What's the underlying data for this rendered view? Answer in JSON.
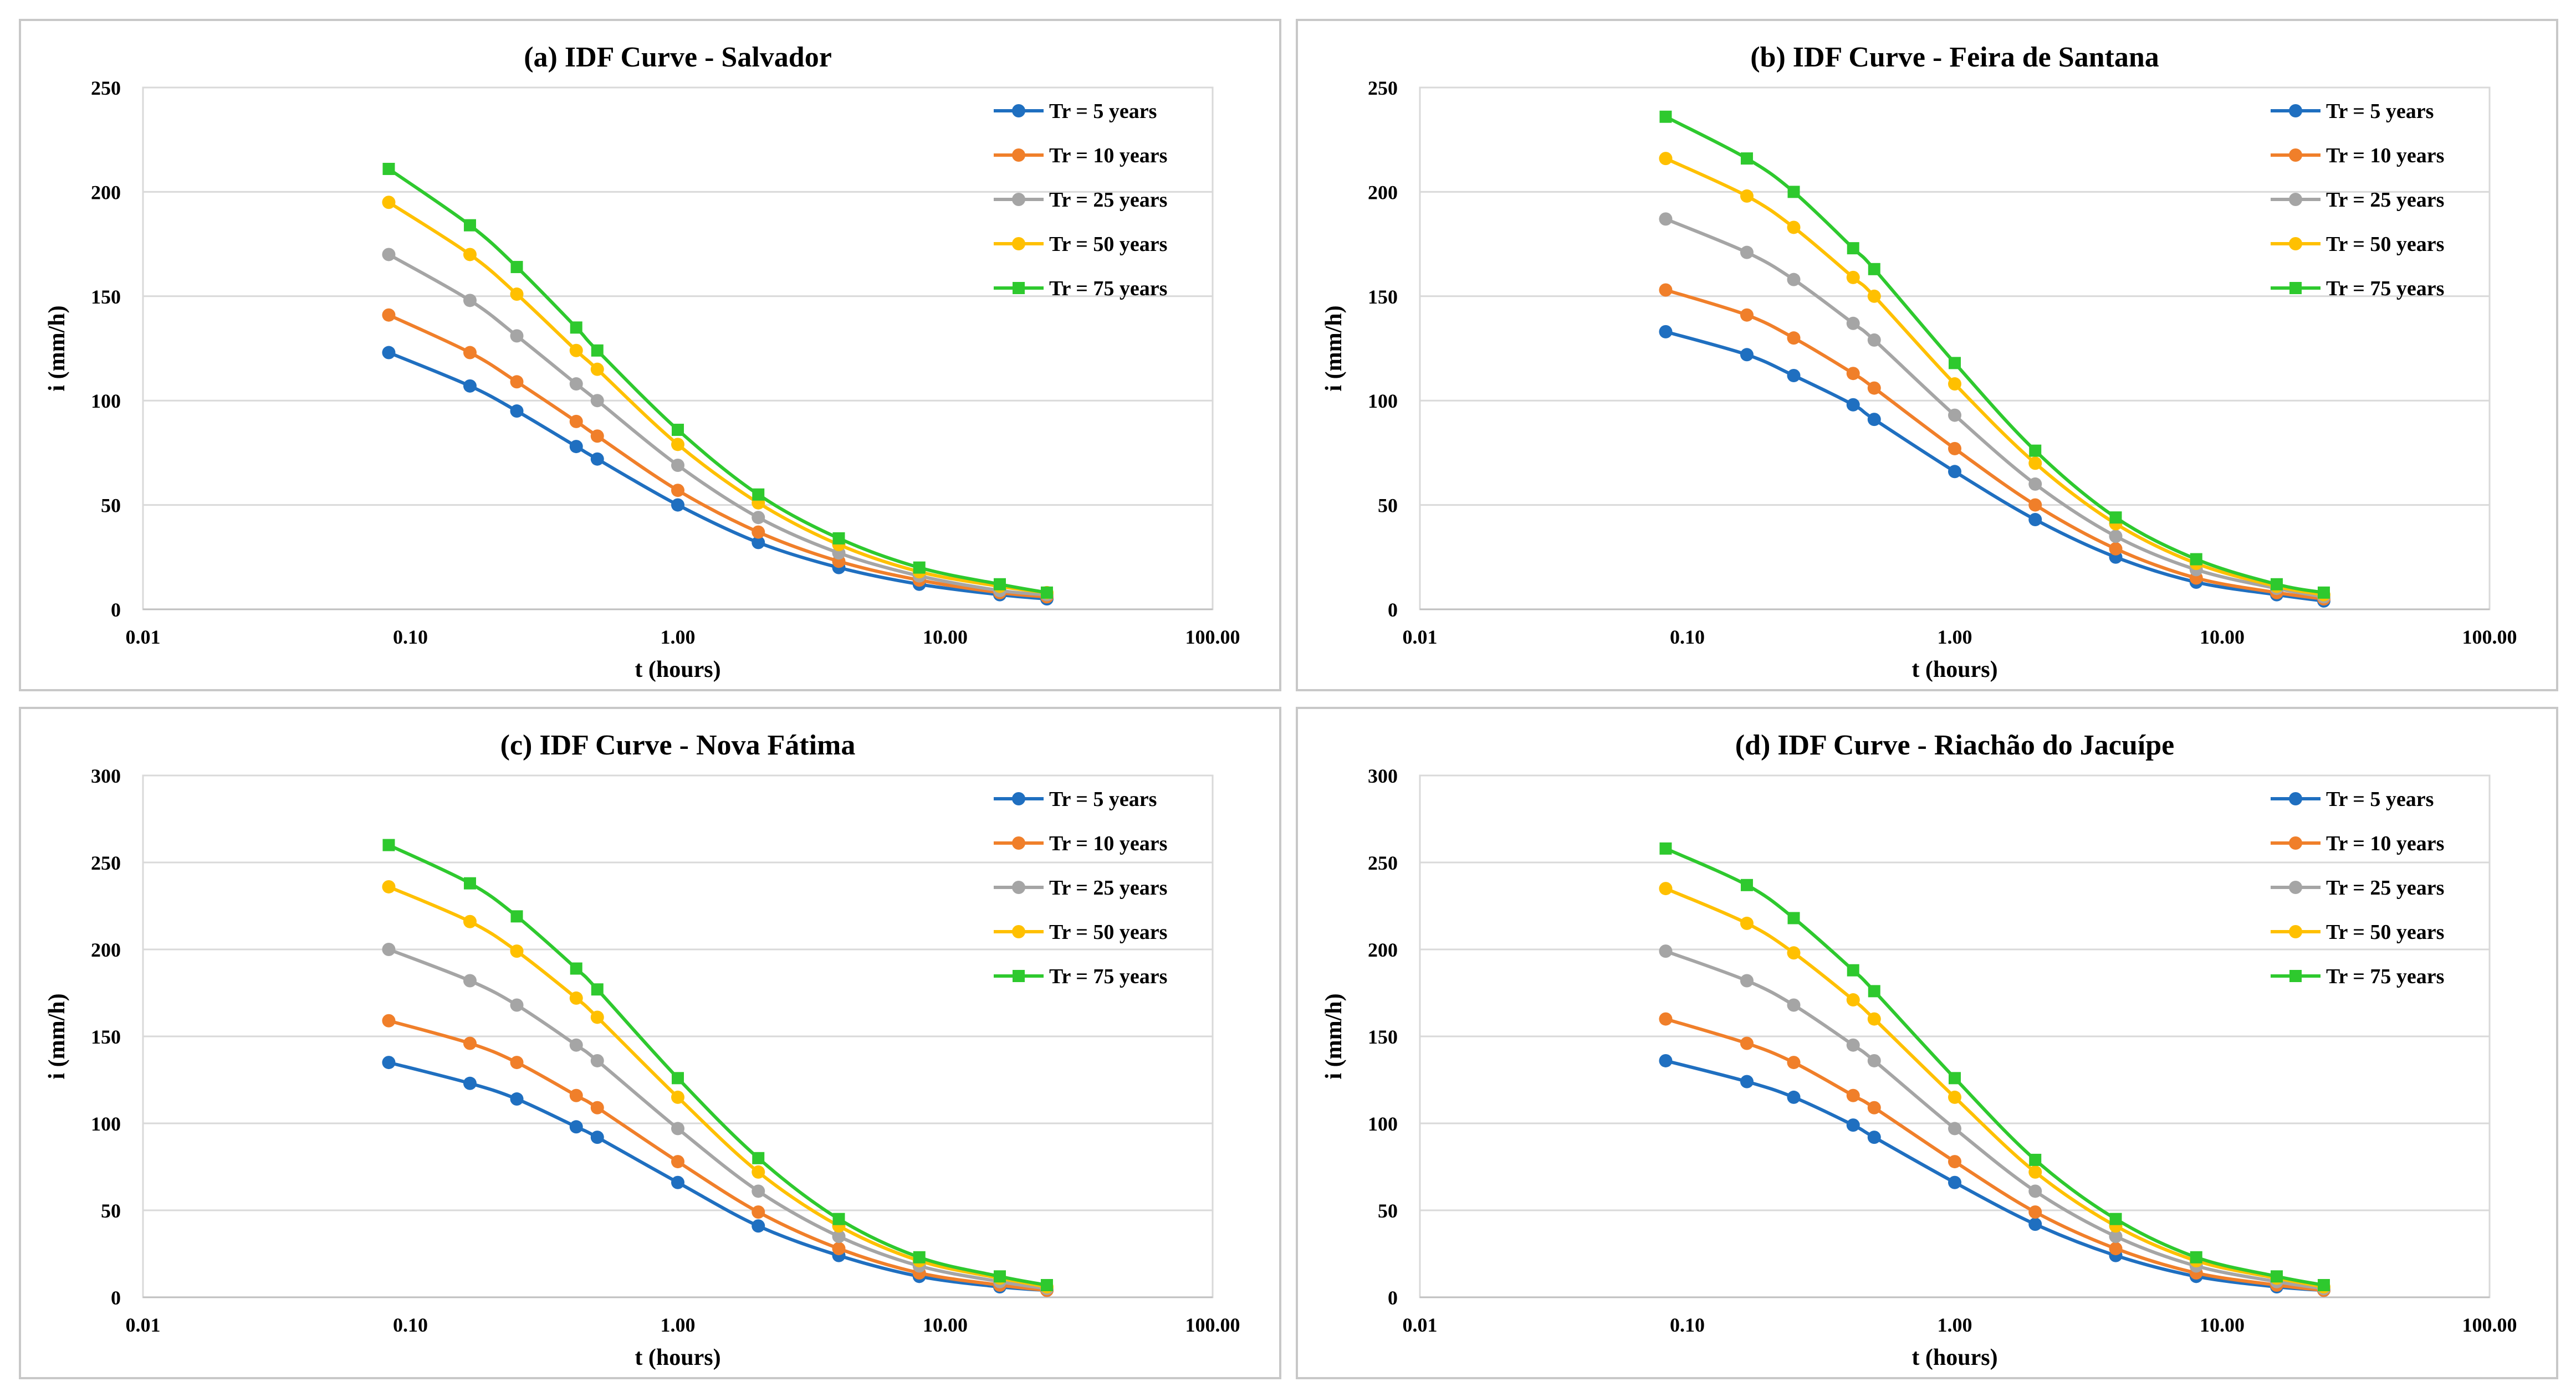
{
  "chart_data": [
    {
      "type": "line",
      "title": "(a) IDF Curve - Salvador",
      "xlabel": "t (hours)",
      "ylabel": "i (mm/h)",
      "x_scale": "log",
      "xlim": [
        0.01,
        100
      ],
      "ylim": [
        0,
        250
      ],
      "x_ticks": [
        "0.01",
        "0.10",
        "1.00",
        "10.00",
        "100.00"
      ],
      "y_ticks": [
        "0",
        "50",
        "100",
        "150",
        "200",
        "250"
      ],
      "grid": "horizontal",
      "legend": "top-right",
      "x": [
        0.083,
        0.167,
        0.25,
        0.417,
        0.5,
        1,
        2,
        4,
        8,
        16,
        24
      ],
      "series": [
        {
          "name": "Tr = 5 years",
          "color": "#1f6fc0",
          "marker": "circle",
          "values": [
            123,
            107,
            95,
            78,
            72,
            50,
            32,
            20,
            12,
            7,
            5
          ]
        },
        {
          "name": "Tr = 10 years",
          "color": "#f07f2a",
          "marker": "circle",
          "values": [
            141,
            123,
            109,
            90,
            83,
            57,
            37,
            23,
            14,
            8,
            6
          ]
        },
        {
          "name": "Tr = 25 years",
          "color": "#a5a5a5",
          "marker": "circle",
          "values": [
            170,
            148,
            131,
            108,
            100,
            69,
            44,
            27,
            16,
            9,
            7
          ]
        },
        {
          "name": "Tr = 50 years",
          "color": "#ffc000",
          "marker": "circle",
          "values": [
            195,
            170,
            151,
            124,
            115,
            79,
            51,
            31,
            18,
            11,
            8
          ]
        },
        {
          "name": "Tr = 75 years",
          "color": "#2ec92e",
          "marker": "square",
          "values": [
            211,
            184,
            164,
            135,
            124,
            86,
            55,
            34,
            20,
            12,
            8
          ]
        }
      ]
    },
    {
      "type": "line",
      "title": "(b) IDF Curve - Feira de Santana",
      "xlabel": "t (hours)",
      "ylabel": "i (mm/h)",
      "x_scale": "log",
      "xlim": [
        0.01,
        100
      ],
      "ylim": [
        0,
        250
      ],
      "x_ticks": [
        "0.01",
        "0.10",
        "1.00",
        "10.00",
        "100.00"
      ],
      "y_ticks": [
        "0",
        "50",
        "100",
        "150",
        "200",
        "250"
      ],
      "grid": "horizontal",
      "legend": "top-right",
      "x": [
        0.083,
        0.167,
        0.25,
        0.417,
        0.5,
        1,
        2,
        4,
        8,
        16,
        24
      ],
      "series": [
        {
          "name": "Tr = 5 years",
          "color": "#1f6fc0",
          "marker": "circle",
          "values": [
            133,
            122,
            112,
            98,
            91,
            66,
            43,
            25,
            13,
            7,
            4
          ]
        },
        {
          "name": "Tr = 10 years",
          "color": "#f07f2a",
          "marker": "circle",
          "values": [
            153,
            141,
            130,
            113,
            106,
            77,
            50,
            29,
            15,
            8,
            5
          ]
        },
        {
          "name": "Tr = 25 years",
          "color": "#a5a5a5",
          "marker": "circle",
          "values": [
            187,
            171,
            158,
            137,
            129,
            93,
            60,
            35,
            19,
            10,
            6
          ]
        },
        {
          "name": "Tr = 50 years",
          "color": "#ffc000",
          "marker": "circle",
          "values": [
            216,
            198,
            183,
            159,
            150,
            108,
            70,
            41,
            22,
            11,
            7
          ]
        },
        {
          "name": "Tr = 75 years",
          "color": "#2ec92e",
          "marker": "square",
          "values": [
            236,
            216,
            200,
            173,
            163,
            118,
            76,
            44,
            24,
            12,
            8
          ]
        }
      ]
    },
    {
      "type": "line",
      "title": "(c) IDF Curve - Nova Fátima",
      "xlabel": "t (hours)",
      "ylabel": "i (mm/h)",
      "x_scale": "log",
      "xlim": [
        0.01,
        100
      ],
      "ylim": [
        0,
        300
      ],
      "x_ticks": [
        "0.01",
        "0.10",
        "1.00",
        "10.00",
        "100.00"
      ],
      "y_ticks": [
        "0",
        "50",
        "100",
        "150",
        "200",
        "250",
        "300"
      ],
      "grid": "horizontal",
      "legend": "top-right",
      "x": [
        0.083,
        0.167,
        0.25,
        0.417,
        0.5,
        1,
        2,
        4,
        8,
        16,
        24
      ],
      "series": [
        {
          "name": "Tr = 5 years",
          "color": "#1f6fc0",
          "marker": "circle",
          "values": [
            135,
            123,
            114,
            98,
            92,
            66,
            41,
            24,
            12,
            6,
            4
          ]
        },
        {
          "name": "Tr = 10 years",
          "color": "#f07f2a",
          "marker": "circle",
          "values": [
            159,
            146,
            135,
            116,
            109,
            78,
            49,
            28,
            14,
            7,
            4
          ]
        },
        {
          "name": "Tr = 25 years",
          "color": "#a5a5a5",
          "marker": "circle",
          "values": [
            200,
            182,
            168,
            145,
            136,
            97,
            61,
            35,
            18,
            9,
            5
          ]
        },
        {
          "name": "Tr = 50 years",
          "color": "#ffc000",
          "marker": "circle",
          "values": [
            236,
            216,
            199,
            172,
            161,
            115,
            72,
            41,
            21,
            11,
            6
          ]
        },
        {
          "name": "Tr = 75 years",
          "color": "#2ec92e",
          "marker": "square",
          "values": [
            260,
            238,
            219,
            189,
            177,
            126,
            80,
            45,
            23,
            12,
            7
          ]
        }
      ]
    },
    {
      "type": "line",
      "title": "(d) IDF Curve - Riachão do Jacuípe",
      "xlabel": "t (hours)",
      "ylabel": "i (mm/h)",
      "x_scale": "log",
      "xlim": [
        0.01,
        100
      ],
      "ylim": [
        0,
        300
      ],
      "x_ticks": [
        "0.01",
        "0.10",
        "1.00",
        "10.00",
        "100.00"
      ],
      "y_ticks": [
        "0",
        "50",
        "100",
        "150",
        "200",
        "250",
        "300"
      ],
      "grid": "horizontal",
      "legend": "top-right",
      "x": [
        0.083,
        0.167,
        0.25,
        0.417,
        0.5,
        1,
        2,
        4,
        8,
        16,
        24
      ],
      "series": [
        {
          "name": "Tr = 5 years",
          "color": "#1f6fc0",
          "marker": "circle",
          "values": [
            136,
            124,
            115,
            99,
            92,
            66,
            42,
            24,
            12,
            6,
            4
          ]
        },
        {
          "name": "Tr = 10 years",
          "color": "#f07f2a",
          "marker": "circle",
          "values": [
            160,
            146,
            135,
            116,
            109,
            78,
            49,
            28,
            14,
            7,
            4
          ]
        },
        {
          "name": "Tr = 25 years",
          "color": "#a5a5a5",
          "marker": "circle",
          "values": [
            199,
            182,
            168,
            145,
            136,
            97,
            61,
            35,
            18,
            9,
            5
          ]
        },
        {
          "name": "Tr = 50 years",
          "color": "#ffc000",
          "marker": "circle",
          "values": [
            235,
            215,
            198,
            171,
            160,
            115,
            72,
            41,
            21,
            11,
            6
          ]
        },
        {
          "name": "Tr = 75 years",
          "color": "#2ec92e",
          "marker": "square",
          "values": [
            258,
            237,
            218,
            188,
            176,
            126,
            79,
            45,
            23,
            12,
            7
          ]
        }
      ]
    }
  ]
}
